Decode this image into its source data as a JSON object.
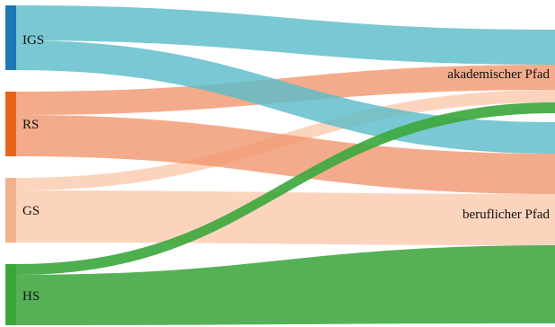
{
  "sources": [
    {
      "key": "igs",
      "label": "IGS",
      "color": "#1f77b4"
    },
    {
      "key": "rs",
      "label": "RS",
      "color": "#e8641b"
    },
    {
      "key": "gs",
      "label": "GS",
      "color": "#f2b28c"
    },
    {
      "key": "hs",
      "label": "HS",
      "color": "#3aa63a"
    }
  ],
  "targets": [
    {
      "key": "akademisch",
      "label": "akademischer Pfad"
    },
    {
      "key": "beruflich",
      "label": "beruflicher Pfad"
    }
  ],
  "flow_colors": {
    "igs": "#5bbcc9",
    "rs": "#f0946a",
    "gs": "#fbcdb3",
    "hs": "#3fa63f"
  }
}
